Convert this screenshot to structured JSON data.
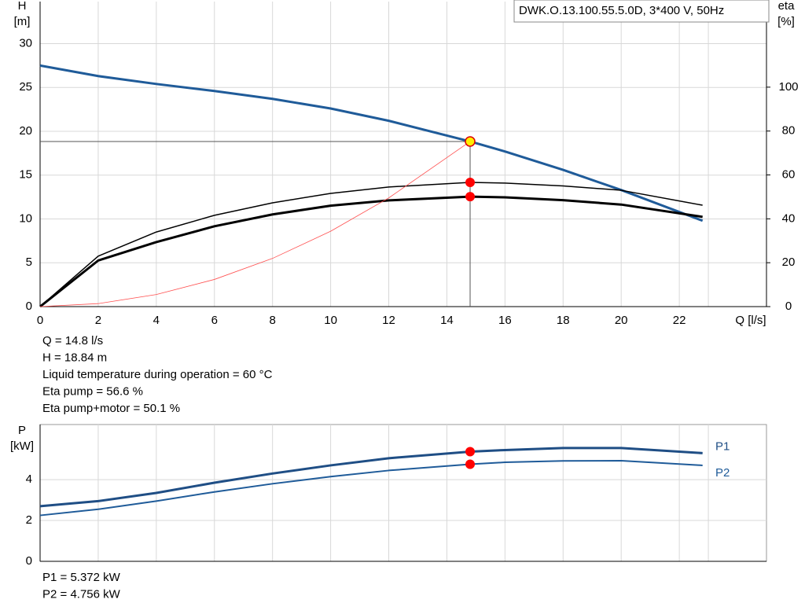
{
  "chart_data": [
    {
      "type": "line",
      "legend_text": "DWK.O.13.100.55.5.0D, 3*400 V, 50Hz",
      "ylabel": [
        "H",
        "[m]"
      ],
      "y2label": [
        "eta",
        "[%]"
      ],
      "xlabel": "Q [l/s]",
      "x": [
        0,
        2,
        4,
        6,
        8,
        10,
        12,
        14.8,
        16,
        18,
        20,
        22.8
      ],
      "xlim": [
        0,
        25
      ],
      "xticks": [
        0,
        2,
        4,
        6,
        8,
        10,
        12,
        14,
        16,
        18,
        20,
        22
      ],
      "ylim": [
        0,
        34.8
      ],
      "yticks": [
        0,
        5,
        10,
        15,
        20,
        25,
        30
      ],
      "y2lim": [
        0,
        139
      ],
      "y2ticks": [
        0,
        20,
        40,
        60,
        80,
        100
      ],
      "grid": true,
      "highlight_x": 14.8,
      "series": [
        {
          "color": "#1f5b99",
          "marker": "#ffee00",
          "values": [
            27.5,
            26.3,
            25.4,
            24.6,
            23.7,
            22.6,
            21.2,
            18.84,
            17.7,
            15.6,
            13.3,
            9.8
          ]
        },
        {
          "color": "#000000",
          "marker": "#ff0000",
          "axis": "y2",
          "values": [
            0,
            23,
            34,
            41.6,
            47.3,
            51.6,
            54.5,
            56.6,
            56.3,
            55,
            53,
            46.2
          ]
        },
        {
          "color": "#000000",
          "marker": "#ff0000",
          "axis": "y2",
          "values": [
            0,
            21,
            29.4,
            36.6,
            42,
            46,
            48.4,
            50.1,
            49.8,
            48.5,
            46.5,
            40.9
          ]
        },
        {
          "color": "#ff5050",
          "values": [
            0,
            0.34,
            1.38,
            3.1,
            5.5,
            8.6,
            12.4,
            18.84,
            null,
            null,
            null,
            null
          ]
        }
      ],
      "annotations": [
        "Q = 14.8 l/s",
        "H = 18.84 m",
        "Liquid temperature during operation = 60 °C",
        "Eta pump = 56.6 %",
        "Eta pump+motor = 50.1 %"
      ]
    },
    {
      "type": "line",
      "ylabel": [
        "P",
        "[kW]"
      ],
      "x": [
        0,
        2,
        4,
        6,
        8,
        10,
        12,
        14.8,
        16,
        18,
        20,
        22.8
      ],
      "xlim": [
        0,
        25
      ],
      "xticks": [
        0,
        2,
        4,
        6,
        8,
        10,
        12,
        14,
        16,
        18,
        20,
        22
      ],
      "ylim": [
        0,
        6.7
      ],
      "yticks": [
        0,
        2,
        4
      ],
      "grid": true,
      "highlight_x": 14.8,
      "series": [
        {
          "name": "P1",
          "color": "#1f4e85",
          "marker": "#ff0000",
          "values": [
            2.7,
            2.95,
            3.35,
            3.85,
            4.3,
            4.7,
            5.05,
            5.372,
            5.45,
            5.55,
            5.55,
            5.3
          ]
        },
        {
          "name": "P2",
          "color": "#1f5b99",
          "marker": "#ff0000",
          "values": [
            2.25,
            2.55,
            2.95,
            3.4,
            3.8,
            4.15,
            4.45,
            4.756,
            4.85,
            4.92,
            4.93,
            4.7
          ]
        }
      ],
      "annotations": [
        "P1 = 5.372 kW",
        "P2 = 4.756 kW"
      ]
    }
  ]
}
